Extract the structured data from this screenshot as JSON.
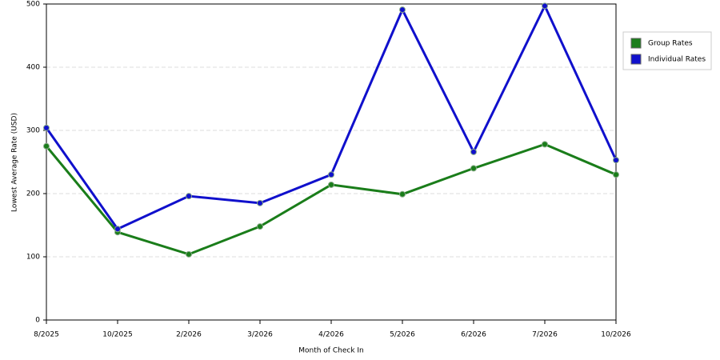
{
  "chart_data": {
    "type": "line",
    "x_label": "Month of Check In",
    "y_label": "Lowest Average Rate (USD)",
    "categories": [
      "8/2025",
      "10/2025",
      "2/2026",
      "3/2026",
      "4/2026",
      "5/2026",
      "6/2026",
      "7/2026",
      "10/2026"
    ],
    "series": [
      {
        "name": "Group Rates",
        "color": "#1a7d1a",
        "values": [
          275,
          139,
          104,
          148,
          214,
          199,
          240,
          278,
          230
        ]
      },
      {
        "name": "Individual Rates",
        "color": "#1010cc",
        "values": [
          304,
          144,
          196,
          185,
          230,
          491,
          266,
          497,
          253
        ]
      }
    ],
    "ylim": [
      0,
      500
    ],
    "yticks": [
      0,
      100,
      200,
      300,
      400,
      500
    ],
    "grid": true,
    "legend": "right"
  }
}
